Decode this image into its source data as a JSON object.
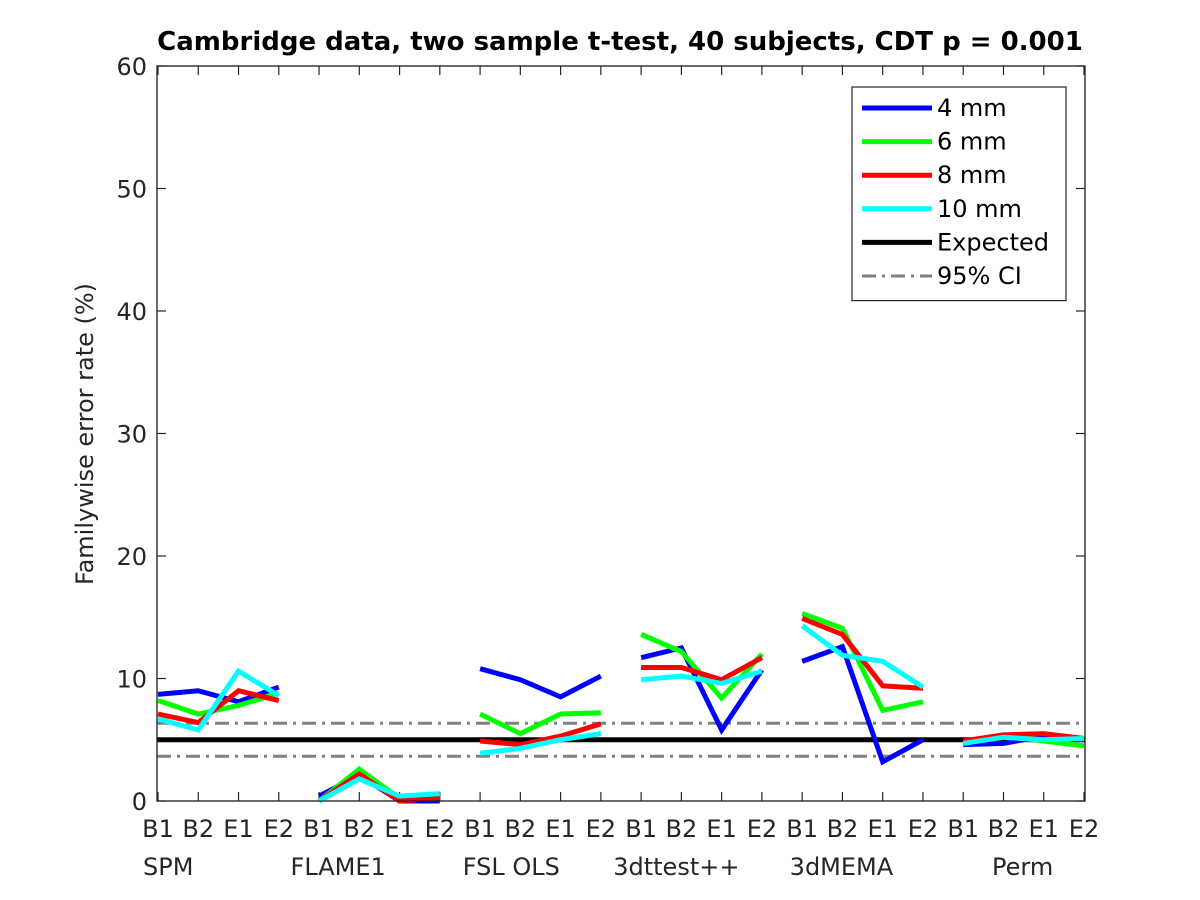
{
  "chart_data": {
    "type": "line",
    "title": "Cambridge data, two sample t-test, 40 subjects, CDT p = 0.001",
    "ylabel": "Familywise error rate (%)",
    "xlabel": "",
    "ylim": [
      0,
      60
    ],
    "yticks": [
      0,
      10,
      20,
      30,
      40,
      50,
      60
    ],
    "grid": false,
    "legend_position": "top-right",
    "groups": [
      "SPM",
      "FLAME1",
      "FSL OLS",
      "3dttest++",
      "3dMEMA",
      "Perm"
    ],
    "subcategories": [
      "B1",
      "B2",
      "E1",
      "E2"
    ],
    "series": [
      {
        "name": "4 mm",
        "color": "#0000ff",
        "style": "solid",
        "values": [
          [
            8.7,
            9.0,
            8.1,
            9.3
          ],
          [
            0.4,
            2.1,
            0.0,
            0.0
          ],
          [
            10.8,
            9.9,
            8.5,
            10.2
          ],
          [
            11.7,
            12.5,
            5.8,
            10.7
          ],
          [
            11.4,
            12.6,
            3.2,
            5.0
          ],
          [
            4.6,
            4.7,
            5.3,
            5.0
          ]
        ]
      },
      {
        "name": "6 mm",
        "color": "#00ff00",
        "style": "solid",
        "values": [
          [
            8.2,
            7.1,
            7.8,
            8.8
          ],
          [
            0.0,
            2.6,
            0.2,
            0.4
          ],
          [
            7.1,
            5.5,
            7.1,
            7.2
          ],
          [
            13.6,
            12.2,
            8.4,
            12.0
          ],
          [
            15.3,
            14.1,
            7.4,
            8.1
          ],
          [
            4.8,
            5.3,
            4.9,
            4.5
          ]
        ]
      },
      {
        "name": "8 mm",
        "color": "#ff0000",
        "style": "solid",
        "values": [
          [
            7.1,
            6.4,
            9.0,
            8.2
          ],
          [
            0.0,
            2.2,
            0.0,
            0.3
          ],
          [
            4.9,
            4.6,
            5.3,
            6.3
          ],
          [
            10.9,
            10.9,
            9.9,
            11.7
          ],
          [
            14.9,
            13.6,
            9.4,
            9.2
          ],
          [
            4.9,
            5.4,
            5.5,
            5.1
          ]
        ]
      },
      {
        "name": "10 mm",
        "color": "#00ffff",
        "style": "solid",
        "values": [
          [
            6.7,
            5.8,
            10.6,
            8.6
          ],
          [
            0.0,
            1.8,
            0.4,
            0.6
          ],
          [
            3.9,
            4.3,
            5.0,
            5.5
          ],
          [
            9.9,
            10.2,
            9.6,
            10.6
          ],
          [
            14.3,
            11.9,
            11.4,
            9.3
          ],
          [
            4.7,
            5.2,
            5.0,
            5.1
          ]
        ]
      }
    ],
    "reference_lines": [
      {
        "name": "Expected",
        "color": "#000000",
        "style": "solid",
        "values": [
          5
        ]
      },
      {
        "name": "95% CI",
        "color": "#808080",
        "style": "dashdot",
        "values": [
          3.65,
          6.35
        ]
      }
    ]
  }
}
